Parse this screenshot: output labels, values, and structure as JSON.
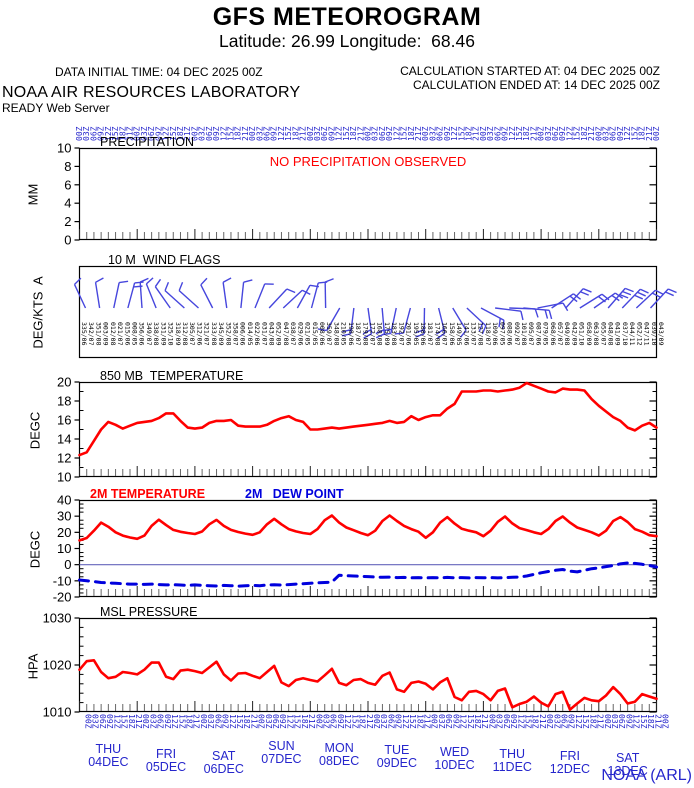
{
  "header": {
    "title": "GFS METEOROGRAM",
    "subtitle": "Latitude: 26.99 Longitude:  68.46",
    "data_initial_time": "DATA INITIAL TIME: 04 DEC 2025 00Z",
    "calc_started": "CALCULATION STARTED AT: 04 DEC 2025 00Z",
    "calc_ended": "CALCULATION ENDED AT: 14 DEC 2025 00Z",
    "org": "NOAA AIR RESOURCES LABORATORY",
    "server": "READY Web Server"
  },
  "footer": {
    "credit": "NOAA (ARL)"
  },
  "colors": {
    "red": "#ff0000",
    "blue_text": "#2626cc",
    "barb": "#4646dd",
    "dew": "#0000dd",
    "zero_line": "#6666bb",
    "time_tick": "#666666",
    "black": "#000000"
  },
  "axis": {
    "n_points": 81,
    "step_hours": 3,
    "hour_labels_pattern": [
      "00Z",
      "03Z",
      "06Z",
      "09Z",
      "12Z",
      "15Z",
      "18Z",
      "21Z"
    ],
    "days": [
      {
        "name": "THU",
        "date": "04DEC"
      },
      {
        "name": "FRI",
        "date": "05DEC"
      },
      {
        "name": "SAT",
        "date": "06DEC"
      },
      {
        "name": "SUN",
        "date": "07DEC"
      },
      {
        "name": "MON",
        "date": "08DEC"
      },
      {
        "name": "TUE",
        "date": "09DEC"
      },
      {
        "name": "WED",
        "date": "10DEC"
      },
      {
        "name": "THU",
        "date": "11DEC"
      },
      {
        "name": "FRI",
        "date": "12DEC"
      },
      {
        "name": "SAT",
        "date": "13DEC"
      }
    ]
  },
  "chart_data": [
    {
      "type": "bar",
      "title": "PRECIPITATION",
      "ylabel": "MM",
      "ylim": [
        0,
        10
      ],
      "yticks": [
        0,
        2,
        4,
        6,
        8,
        10
      ],
      "values": [],
      "annotation": "NO PRECIPITATION OBSERVED",
      "annotation_color": "#ff0000"
    },
    {
      "type": "wind-barbs",
      "title": "10 M  WIND FLAGS",
      "ylabel": "DEG/KTS  A",
      "barb_angles_deg": [
        335,
        351,
        12,
        15,
        356,
        338,
        325,
        312,
        312,
        333,
        352,
        6,
        22,
        43,
        47,
        29,
        15,
        359,
        210,
        187,
        172,
        175,
        192,
        195,
        181,
        166,
        149,
        133,
        118,
        97,
        92,
        95,
        79,
        57,
        42,
        58,
        55,
        41,
        44,
        47,
        43
      ],
      "barb_feathers": [
        1,
        1,
        1,
        2,
        1,
        1,
        1,
        1,
        1,
        1,
        1,
        1,
        1,
        1,
        1,
        1,
        1,
        1,
        1,
        2,
        2,
        2,
        2,
        1,
        2,
        2,
        1,
        2,
        2,
        1,
        1,
        2,
        1,
        2,
        2,
        2,
        2,
        3,
        3,
        2,
        2
      ],
      "deg_kts_labels": [
        "335/06",
        "342/07",
        "351/08",
        "003/09",
        "012/08",
        "021/07",
        "015/06",
        "008/05",
        "356/06",
        "349/07",
        "338/08",
        "331/09",
        "325/10",
        "318/09",
        "312/08",
        "305/07",
        "312/06",
        "321/07",
        "333/08",
        "345/09",
        "352/08",
        "358/07",
        "006/06",
        "014/05",
        "022/06",
        "031/07",
        "043/08",
        "052/09",
        "047/08",
        "038/07",
        "029/06",
        "021/05",
        "015/05",
        "008/06",
        "359/07",
        "348/08",
        "210/05",
        "198/06",
        "187/07",
        "179/08",
        "172/07",
        "168/08",
        "175/09",
        "183/08",
        "192/07",
        "201/06",
        "195/05",
        "188/06",
        "181/07",
        "174/08",
        "166/07",
        "158/06",
        "149/05",
        "141/06",
        "133/07",
        "127/08",
        "118/07",
        "109/06",
        "097/05",
        "088/06",
        "092/07",
        "101/08",
        "095/07",
        "087/06",
        "079/05",
        "068/06",
        "057/07",
        "049/08",
        "042/09",
        "051/10",
        "058/09",
        "063/08",
        "055/07",
        "048/08",
        "041/09",
        "037/10",
        "044/11",
        "052/12",
        "047/11",
        "039/10",
        "043/09"
      ]
    },
    {
      "type": "line",
      "title": "850 MB  TEMPERATURE",
      "ylabel": "DEGC",
      "ylim": [
        10,
        20
      ],
      "yticks": [
        10,
        12,
        14,
        16,
        18,
        20
      ],
      "line_color": "#ff0000",
      "values": [
        12.3,
        12.6,
        13.8,
        15.0,
        15.8,
        15.5,
        15.1,
        15.4,
        15.7,
        15.8,
        15.9,
        16.2,
        16.7,
        16.7,
        15.9,
        15.2,
        15.1,
        15.2,
        15.7,
        15.9,
        15.9,
        16.0,
        15.4,
        15.3,
        15.3,
        15.3,
        15.5,
        15.9,
        16.2,
        16.4,
        16.0,
        15.8,
        15.0,
        15.0,
        15.1,
        15.2,
        15.1,
        15.2,
        15.3,
        15.4,
        15.5,
        15.6,
        15.7,
        15.9,
        15.7,
        15.8,
        16.4,
        16.0,
        16.3,
        16.5,
        16.5,
        17.2,
        17.7,
        19.0,
        19.0,
        19.0,
        19.1,
        19.1,
        19.0,
        19.1,
        19.2,
        19.4,
        19.9,
        19.6,
        19.3,
        19.0,
        18.9,
        19.3,
        19.2,
        19.2,
        19.1,
        18.2,
        17.5,
        16.9,
        16.3,
        15.9,
        15.2,
        14.9,
        15.4,
        15.7,
        15.2
      ]
    },
    {
      "type": "line",
      "ylabel": "DEGC",
      "ylim": [
        -20,
        40
      ],
      "yticks": [
        -20,
        -10,
        0,
        10,
        20,
        30,
        40
      ],
      "zero_line": true,
      "series": [
        {
          "name": "2M TEMPERATURE",
          "color": "#ff0000",
          "style": "solid",
          "values": [
            15.0,
            16.5,
            21.0,
            26.0,
            23.5,
            20.0,
            18.0,
            16.8,
            16.0,
            18.0,
            24.0,
            27.8,
            24.5,
            21.5,
            20.3,
            19.6,
            19.0,
            20.5,
            25.0,
            27.7,
            24.0,
            21.5,
            20.2,
            19.2,
            18.5,
            20.0,
            25.0,
            28.4,
            25.0,
            22.0,
            20.6,
            19.6,
            19.0,
            22.0,
            27.5,
            30.4,
            26.0,
            23.0,
            21.3,
            19.6,
            18.2,
            21.0,
            27.0,
            30.4,
            27.0,
            24.0,
            22.0,
            20.4,
            16.6,
            20.0,
            26.0,
            29.4,
            25.4,
            22.2,
            21.0,
            20.0,
            17.6,
            21.0,
            26.5,
            29.8,
            25.5,
            22.6,
            21.4,
            20.0,
            19.0,
            22.0,
            27.0,
            29.8,
            26.0,
            23.0,
            21.5,
            20.0,
            18.0,
            21.0,
            27.0,
            29.4,
            26.4,
            22.0,
            20.4,
            18.2,
            17.6
          ]
        },
        {
          "name": "2M   DEW POINT",
          "color": "#0000dd",
          "style": "dashed",
          "values": [
            -9.5,
            -10.0,
            -10.5,
            -11.0,
            -11.3,
            -11.5,
            -11.8,
            -12.0,
            -12.0,
            -12.2,
            -12.0,
            -12.3,
            -12.5,
            -12.4,
            -12.6,
            -12.8,
            -12.5,
            -12.8,
            -13.0,
            -13.2,
            -12.8,
            -13.0,
            -13.3,
            -13.0,
            -12.8,
            -13.0,
            -12.6,
            -12.4,
            -12.6,
            -12.3,
            -12.0,
            -11.8,
            -11.5,
            -11.2,
            -11.0,
            -10.8,
            -6.5,
            -6.8,
            -7.0,
            -7.2,
            -7.4,
            -7.6,
            -7.8,
            -7.7,
            -8.0,
            -7.9,
            -8.1,
            -8.0,
            -8.2,
            -8.0,
            -8.1,
            -7.9,
            -8.1,
            -8.0,
            -8.2,
            -8.0,
            -8.1,
            -8.0,
            -8.2,
            -8.0,
            -7.8,
            -7.6,
            -7.0,
            -6.0,
            -5.0,
            -4.2,
            -3.5,
            -3.0,
            -4.0,
            -4.5,
            -3.5,
            -2.5,
            -2.0,
            -1.2,
            -0.5,
            0.5,
            1.0,
            0.8,
            0.2,
            -0.5,
            -1.5
          ]
        }
      ]
    },
    {
      "type": "line",
      "title": "MSL PRESSURE",
      "ylabel": "HPA",
      "ylim": [
        1010,
        1030
      ],
      "yticks": [
        1010,
        1020,
        1030
      ],
      "line_color": "#ff0000",
      "values": [
        1019.0,
        1020.8,
        1021.0,
        1018.5,
        1017.2,
        1017.5,
        1018.5,
        1018.3,
        1018.0,
        1019.0,
        1020.5,
        1020.5,
        1017.5,
        1017.0,
        1018.8,
        1019.0,
        1018.7,
        1018.3,
        1019.5,
        1020.7,
        1018.0,
        1016.7,
        1018.2,
        1018.3,
        1017.7,
        1017.2,
        1018.5,
        1019.8,
        1016.3,
        1015.5,
        1016.8,
        1017.2,
        1016.8,
        1016.5,
        1017.8,
        1019.2,
        1016.2,
        1015.7,
        1016.8,
        1017.0,
        1016.2,
        1015.8,
        1017.7,
        1018.4,
        1014.8,
        1014.3,
        1016.2,
        1016.5,
        1016.0,
        1014.8,
        1016.3,
        1017.2,
        1013.2,
        1012.5,
        1014.3,
        1014.5,
        1013.8,
        1012.5,
        1014.5,
        1015.0,
        1011.0,
        1011.7,
        1012.2,
        1013.3,
        1012.0,
        1011.2,
        1013.8,
        1014.3,
        1010.5,
        1011.8,
        1013.0,
        1012.5,
        1012.3,
        1013.5,
        1015.3,
        1013.8,
        1011.8,
        1012.2,
        1013.8,
        1013.3,
        1012.8
      ]
    }
  ]
}
